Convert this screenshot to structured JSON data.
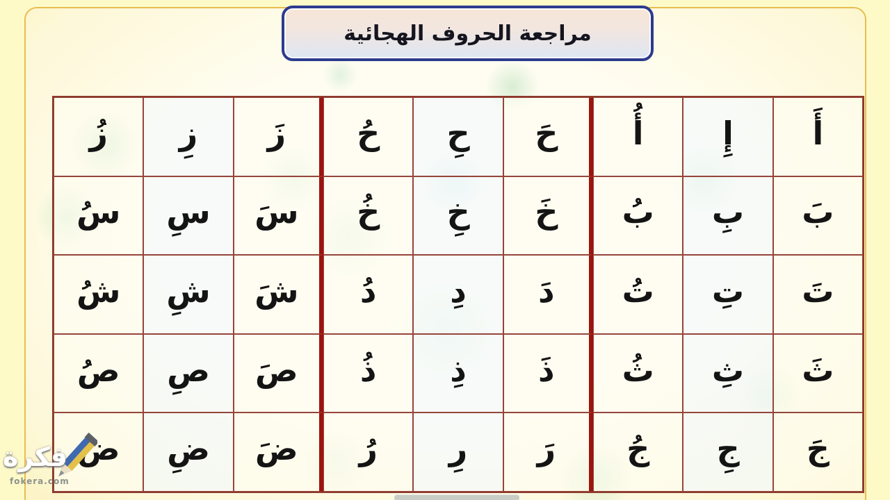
{
  "title": {
    "text": "مراجعة الحروف الهجائية"
  },
  "grid": {
    "note": "cells listed in RTL visual order (rightmost first); groups of three = fatha, kasra, damma",
    "rows": [
      {
        "cells": [
          "أَ",
          "إِ",
          "أُ",
          "حَ",
          "حِ",
          "حُ",
          "زَ",
          "زِ",
          "زُ"
        ]
      },
      {
        "cells": [
          "بَ",
          "بِ",
          "بُ",
          "خَ",
          "خِ",
          "خُ",
          "سَ",
          "سِ",
          "سُ"
        ]
      },
      {
        "cells": [
          "تَ",
          "تِ",
          "تُ",
          "دَ",
          "دِ",
          "دُ",
          "شَ",
          "شِ",
          "شُ"
        ]
      },
      {
        "cells": [
          "ثَ",
          "ثِ",
          "ثُ",
          "ذَ",
          "ذِ",
          "ذُ",
          "صَ",
          "صِ",
          "صُ"
        ]
      },
      {
        "cells": [
          "جَ",
          "جِ",
          "جُ",
          "رَ",
          "رِ",
          "رُ",
          "ضَ",
          "ضِ",
          "ضُ"
        ]
      }
    ]
  },
  "watermark": {
    "name": "فكرة",
    "domain": "fokera.com",
    "icon": "pencil-icon"
  },
  "colors": {
    "outer_background": "#fdfac8",
    "slide_gold_edge": "#f9d048",
    "grid_line": "#96443a",
    "group_separator": "#9c140e",
    "title_border": "#2c3b8e",
    "title_fill_top": "#f7e5d6",
    "title_fill_bottom": "#dde7f3",
    "letter_color": "#141414"
  }
}
